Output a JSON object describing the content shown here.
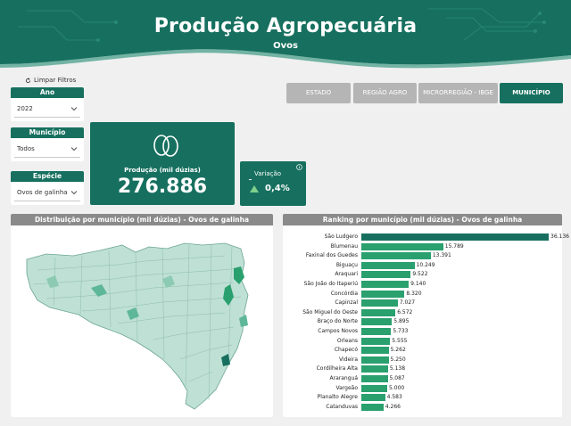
{
  "header": {
    "title": "Produção Agropecuária",
    "subtitle": "Ovos"
  },
  "filters": {
    "clear_label": "Limpar Filtros",
    "ano": {
      "label": "Ano",
      "value": "2022"
    },
    "municipio": {
      "label": "Município",
      "value": "Todos"
    },
    "especie": {
      "label": "Espécie",
      "value": "Ovos de galinha"
    }
  },
  "tabs": [
    {
      "label": "ESTADO",
      "active": false
    },
    {
      "label": "REGIÃO AGRO",
      "active": false
    },
    {
      "label": "MICRORREGIÃO - IBGE",
      "active": false
    },
    {
      "label": "MUNICÍPIO",
      "active": true
    }
  ],
  "kpi": {
    "label": "Produção (mil dúzias)",
    "value": "276.886",
    "icon": "eggs-icon"
  },
  "variation": {
    "label": "Variação",
    "value": "0,4%",
    "direction": "up"
  },
  "map_panel": {
    "title": "Distribuição por município (mil dúzias) - Ovos de galinha"
  },
  "ranking_panel": {
    "title": "Ranking por município (mil dúzias) - Ovos de galinha"
  },
  "colors": {
    "brand": "#17705f",
    "bar": "#29a06e",
    "bar_top": "#17705f",
    "inactive_tab": "#b5b5b5",
    "panel_header": "#8a8a8a"
  },
  "chart_data": {
    "type": "bar",
    "orientation": "horizontal",
    "title": "Ranking por município (mil dúzias) - Ovos de galinha",
    "categories": [
      "São Ludgero",
      "Blumenau",
      "Faxinal dos Guedes",
      "Biguaçu",
      "Araquari",
      "São João do Itaperiú",
      "Concórdia",
      "Capinzal",
      "São Miguel do Oeste",
      "Braço do Norte",
      "Campos Novos",
      "Orleans",
      "Chapecó",
      "Videira",
      "Cordilheira Alta",
      "Araranguá",
      "Vargeão",
      "Planalto Alegre",
      "Catanduvas"
    ],
    "values": [
      36136,
      15789,
      13391,
      10249,
      9522,
      9140,
      8320,
      7027,
      6572,
      5895,
      5733,
      5555,
      5262,
      5250,
      5138,
      5087,
      5000,
      4583,
      4266
    ],
    "labels": [
      "36.136",
      "15.789",
      "13.391",
      "10.249",
      "9.522",
      "9.140",
      "8.320",
      "7.027",
      "6.572",
      "5.895",
      "5.733",
      "5.555",
      "5.262",
      "5.250",
      "5.138",
      "5.087",
      "5.000",
      "4.583",
      "4.266"
    ],
    "xlim": [
      0,
      36136
    ]
  }
}
